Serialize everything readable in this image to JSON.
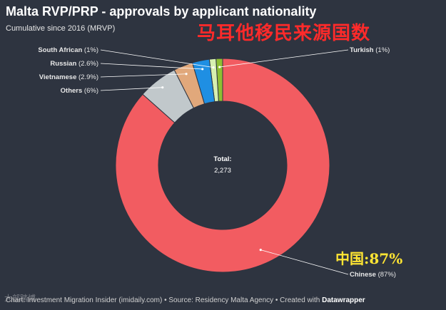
{
  "header": {
    "title": "Malta RVP/PRP - approvals by applicant nationality",
    "subtitle": "Cumulative since 2016 (MRVP)",
    "cn_overlay": "马耳他移民来源国数",
    "cn_percent": "中国:87%"
  },
  "footer": {
    "source_text": "Chart: Investment Migration Insider (imidaily.com) • Source: Residency Malta Agency • Created with ",
    "brand": "Datawrapper",
    "watermark": "大部踏博"
  },
  "chart_data": {
    "type": "pie",
    "title": "Malta RVP/PRP - approvals by applicant nationality",
    "subtitle": "Cumulative since 2016 (MRVP)",
    "center_label": "Total:",
    "center_value": "2,273",
    "slices": [
      {
        "label": "Chinese (87%)",
        "value": 87,
        "color": "#f25c61"
      },
      {
        "label": "Others (6%)",
        "value": 6,
        "color": "#c1c8cb"
      },
      {
        "label": "Vietnamese (2.9%)",
        "value": 2.9,
        "color": "#e1a87b"
      },
      {
        "label": "Russian (2.6%)",
        "value": 2.6,
        "color": "#1f8fe3"
      },
      {
        "label": "South African (1%)",
        "value": 1,
        "color": "#d7f0b0"
      },
      {
        "label": "Turkish (1%)",
        "value": 1,
        "color": "#8fbf33"
      }
    ]
  }
}
